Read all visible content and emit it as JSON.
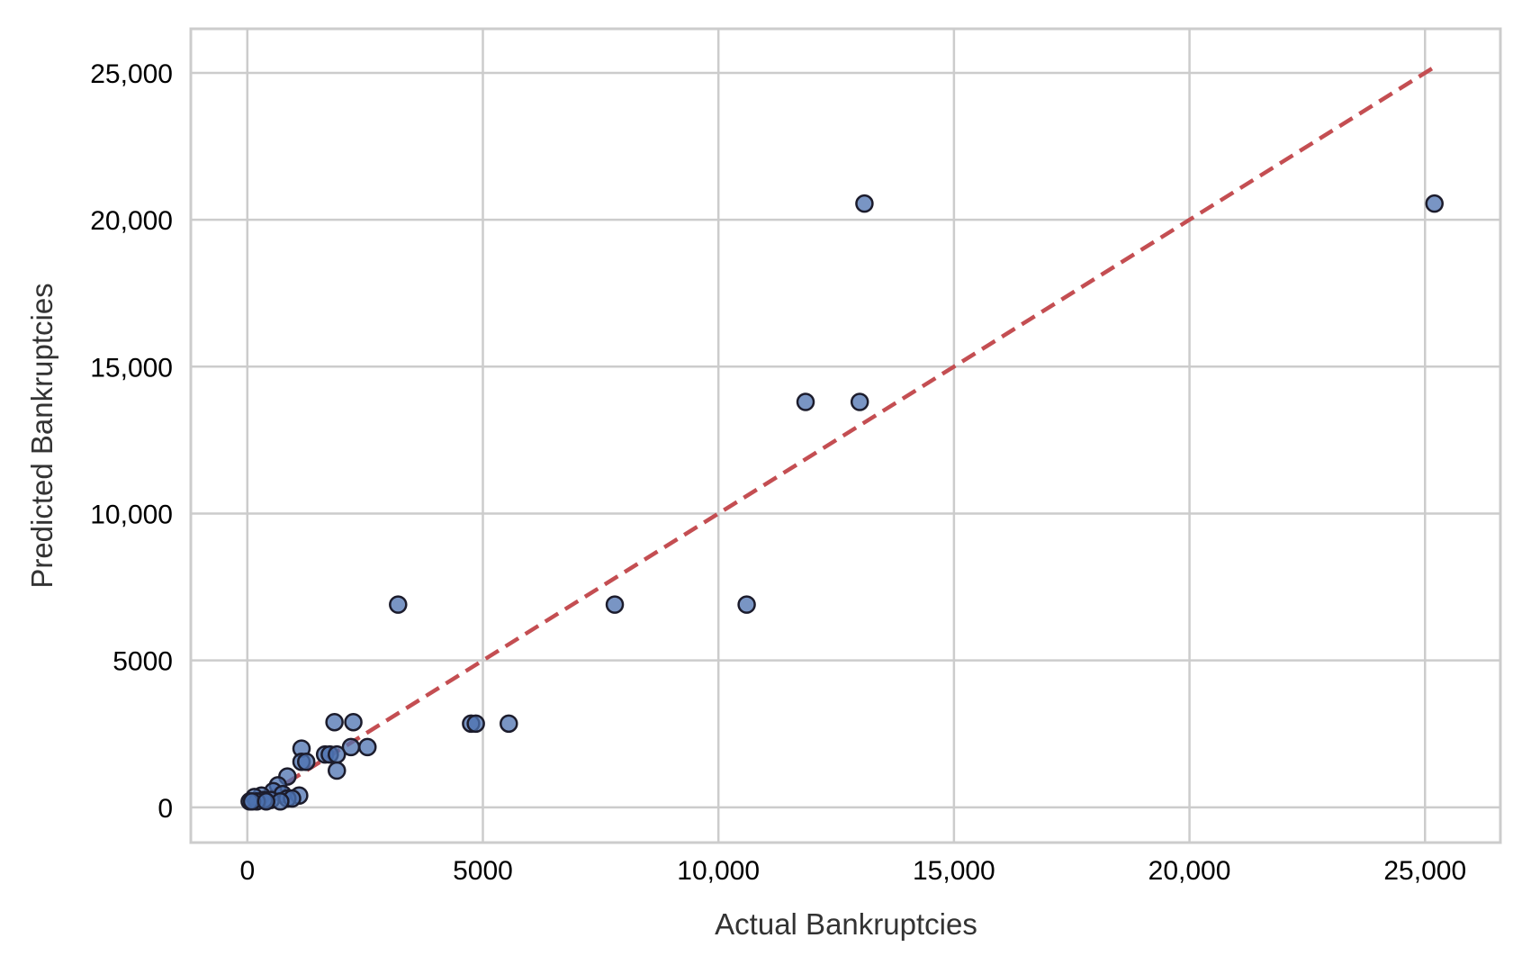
{
  "chart_data": {
    "type": "scatter",
    "title": "",
    "xlabel": "Actual Bankruptcies",
    "ylabel": "Predicted Bankruptcies",
    "xlim": [
      -1200,
      26600
    ],
    "ylim": [
      -1200,
      26500
    ],
    "x_ticks": [
      0,
      5000,
      10000,
      15000,
      20000,
      25000
    ],
    "x_tick_labels": [
      "0",
      "5000",
      "10,000",
      "15,000",
      "20,000",
      "25,000"
    ],
    "y_ticks": [
      0,
      5000,
      10000,
      15000,
      20000,
      25000
    ],
    "y_tick_labels": [
      "0",
      "5000",
      "10,000",
      "15,000",
      "20,000",
      "25,000"
    ],
    "grid": true,
    "reference_line": {
      "x": [
        0,
        25200
      ],
      "y": [
        0,
        25200
      ],
      "style": "dashed",
      "color": "#c44e52"
    },
    "marker_color": "#4c72b0",
    "marker_edge_color": "#1c1c2c",
    "points": [
      {
        "x": 25200,
        "y": 20550
      },
      {
        "x": 13100,
        "y": 20550
      },
      {
        "x": 11850,
        "y": 13800
      },
      {
        "x": 13000,
        "y": 13800
      },
      {
        "x": 3200,
        "y": 6900
      },
      {
        "x": 7800,
        "y": 6900
      },
      {
        "x": 10600,
        "y": 6900
      },
      {
        "x": 4750,
        "y": 2850
      },
      {
        "x": 4850,
        "y": 2850
      },
      {
        "x": 5550,
        "y": 2850
      },
      {
        "x": 1850,
        "y": 2900
      },
      {
        "x": 2250,
        "y": 2900
      },
      {
        "x": 2550,
        "y": 2050
      },
      {
        "x": 2200,
        "y": 2050
      },
      {
        "x": 1150,
        "y": 2000
      },
      {
        "x": 1650,
        "y": 1800
      },
      {
        "x": 1750,
        "y": 1800
      },
      {
        "x": 1900,
        "y": 1800
      },
      {
        "x": 1150,
        "y": 1550
      },
      {
        "x": 1250,
        "y": 1550
      },
      {
        "x": 1900,
        "y": 1250
      },
      {
        "x": 850,
        "y": 1050
      },
      {
        "x": 650,
        "y": 750
      },
      {
        "x": 550,
        "y": 550
      },
      {
        "x": 750,
        "y": 450
      },
      {
        "x": 1100,
        "y": 400
      },
      {
        "x": 300,
        "y": 400
      },
      {
        "x": 150,
        "y": 350
      },
      {
        "x": 850,
        "y": 300
      },
      {
        "x": 950,
        "y": 300
      },
      {
        "x": 500,
        "y": 250
      },
      {
        "x": 350,
        "y": 250
      },
      {
        "x": 200,
        "y": 200
      },
      {
        "x": 700,
        "y": 200
      },
      {
        "x": 50,
        "y": 200
      },
      {
        "x": 100,
        "y": 200
      },
      {
        "x": 400,
        "y": 200
      }
    ]
  }
}
